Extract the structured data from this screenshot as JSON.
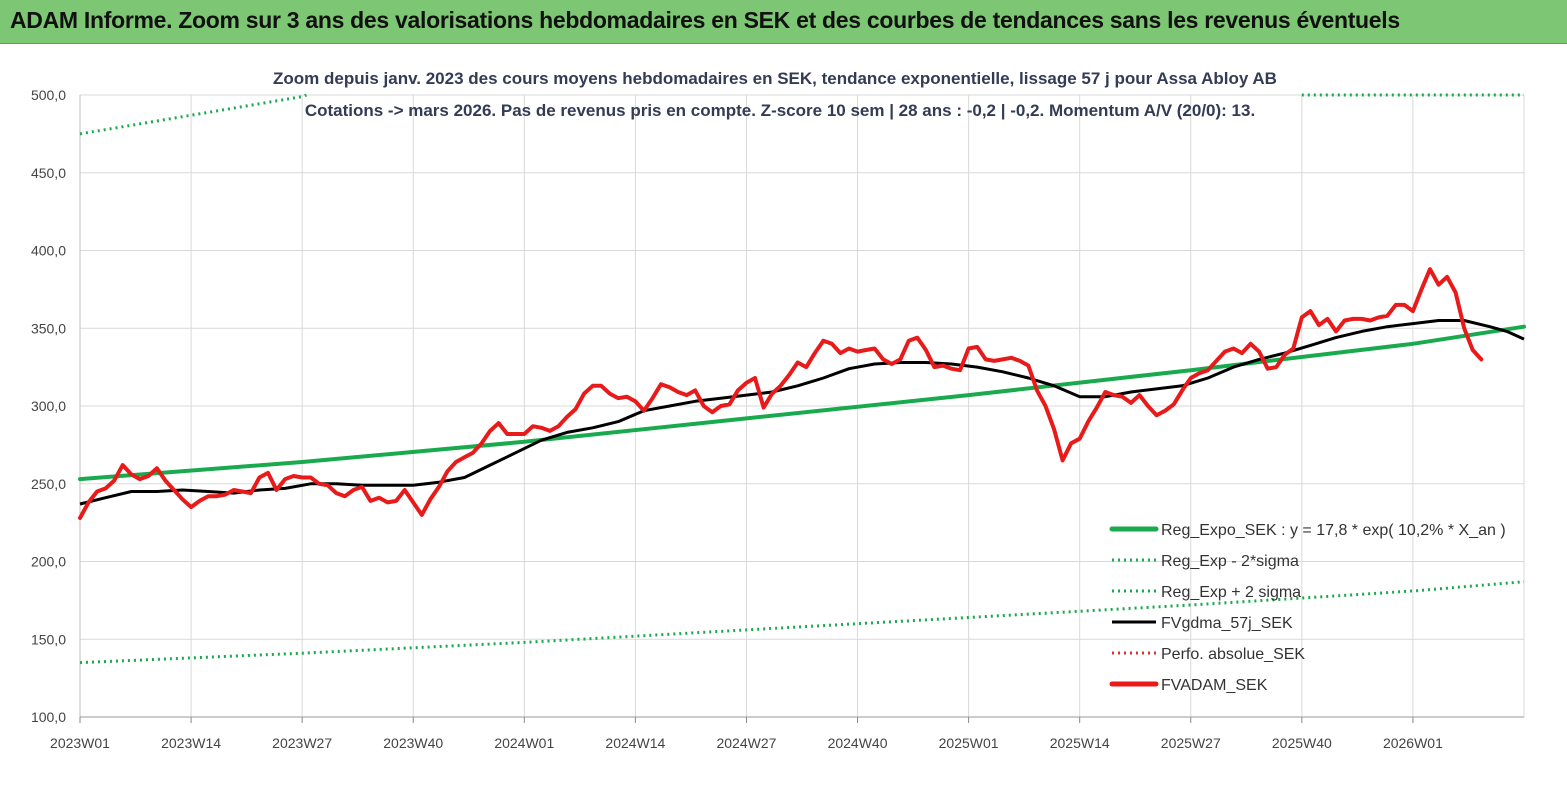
{
  "header": {
    "title": "ADAM Informe. Zoom sur 3 ans des valorisations hebdomadaires en SEK et des courbes de tendances sans les revenus éventuels"
  },
  "colors": {
    "banner": "#7dc673",
    "reg_expo": "#1aaa4e",
    "bands": "#1aaa4e",
    "fvgdma": "#000000",
    "perfo": "#e03030",
    "fvadam": "#e81a1a"
  },
  "chart_data": {
    "type": "line",
    "title": "Zoom depuis janv. 2023 des cours moyens hebdomadaires en SEK, tendance exponentielle, lissage 57 j pour Assa Abloy AB",
    "subtitle": "Cotations -> mars 2026. Pas de revenus pris en compte. Z-score 10 sem | 28 ans : -0,2 | -0,2. Momentum A/V (20/0): 13.",
    "ylim": [
      100,
      500
    ],
    "grid": true,
    "y_ticks": [
      "100,0",
      "150,0",
      "200,0",
      "250,0",
      "300,0",
      "350,0",
      "400,0",
      "450,0",
      "500,0"
    ],
    "x_ticks": [
      "2023W01",
      "2023W14",
      "2023W27",
      "2023W40",
      "2024W01",
      "2024W14",
      "2024W27",
      "2024W40",
      "2025W01",
      "2025W14",
      "2025W27",
      "2025W40",
      "2026W01"
    ],
    "x_range_weeks": [
      0,
      169
    ],
    "legend_position": "bottom-right",
    "series": [
      {
        "name": "Reg_Expo_SEK : y = 17,8 * exp( 10,2% *  X_an )",
        "style": "solid-thick",
        "color": "#1aaa4e",
        "points": [
          [
            0,
            253
          ],
          [
            26,
            264
          ],
          [
            52,
            277
          ],
          [
            78,
            292
          ],
          [
            104,
            307
          ],
          [
            130,
            323
          ],
          [
            156,
            340
          ],
          [
            169,
            351
          ]
        ]
      },
      {
        "name": "Reg_Exp - 2*sigma",
        "style": "dotted",
        "color": "#1aaa4e",
        "points": [
          [
            0,
            135
          ],
          [
            26,
            141
          ],
          [
            52,
            148
          ],
          [
            78,
            156
          ],
          [
            104,
            164
          ],
          [
            130,
            172
          ],
          [
            156,
            181
          ],
          [
            169,
            187
          ]
        ]
      },
      {
        "name": "Reg_Exp + 2 sigma",
        "style": "dotted",
        "color": "#1aaa4e",
        "points": [
          [
            0,
            475
          ],
          [
            26,
            499
          ],
          [
            26.5,
            500
          ]
        ],
        "points_right": [
          [
            143,
            500
          ],
          [
            169,
            500
          ]
        ]
      },
      {
        "name": "FVgdma_57j_SEK",
        "style": "solid",
        "color": "#000000",
        "points": [
          [
            0,
            237
          ],
          [
            3,
            241
          ],
          [
            6,
            245
          ],
          [
            9,
            245
          ],
          [
            12,
            246
          ],
          [
            15,
            245
          ],
          [
            18,
            244
          ],
          [
            21,
            246
          ],
          [
            24,
            247
          ],
          [
            27,
            250
          ],
          [
            30,
            250
          ],
          [
            33,
            249
          ],
          [
            36,
            249
          ],
          [
            39,
            249
          ],
          [
            42,
            251
          ],
          [
            45,
            254
          ],
          [
            48,
            262
          ],
          [
            51,
            270
          ],
          [
            54,
            278
          ],
          [
            57,
            283
          ],
          [
            60,
            286
          ],
          [
            63,
            290
          ],
          [
            66,
            297
          ],
          [
            69,
            300
          ],
          [
            72,
            303
          ],
          [
            75,
            305
          ],
          [
            78,
            307
          ],
          [
            81,
            309
          ],
          [
            84,
            313
          ],
          [
            87,
            318
          ],
          [
            90,
            324
          ],
          [
            93,
            327
          ],
          [
            96,
            328
          ],
          [
            99,
            328
          ],
          [
            102,
            327
          ],
          [
            105,
            325
          ],
          [
            108,
            322
          ],
          [
            111,
            318
          ],
          [
            114,
            313
          ],
          [
            117,
            306
          ],
          [
            120,
            306
          ],
          [
            123,
            309
          ],
          [
            126,
            311
          ],
          [
            129,
            313
          ],
          [
            132,
            318
          ],
          [
            135,
            325
          ],
          [
            138,
            330
          ],
          [
            141,
            334
          ],
          [
            144,
            339
          ],
          [
            147,
            344
          ],
          [
            150,
            348
          ],
          [
            153,
            351
          ],
          [
            156,
            353
          ],
          [
            159,
            355
          ],
          [
            162,
            355
          ],
          [
            165,
            351
          ],
          [
            167,
            348
          ],
          [
            169,
            343
          ]
        ]
      },
      {
        "name": "Perfo. absolue_SEK",
        "style": "dotted",
        "color": "#e03030",
        "points": []
      },
      {
        "name": "FVADAM_SEK",
        "style": "solid-thick",
        "color": "#e81a1a",
        "points": [
          [
            0,
            228
          ],
          [
            1,
            238
          ],
          [
            2,
            245
          ],
          [
            3,
            247
          ],
          [
            4,
            252
          ],
          [
            5,
            262
          ],
          [
            6,
            256
          ],
          [
            7,
            253
          ],
          [
            8,
            255
          ],
          [
            9,
            260
          ],
          [
            10,
            252
          ],
          [
            11,
            246
          ],
          [
            12,
            240
          ],
          [
            13,
            235
          ],
          [
            14,
            239
          ],
          [
            15,
            242
          ],
          [
            16,
            242
          ],
          [
            17,
            243
          ],
          [
            18,
            246
          ],
          [
            19,
            245
          ],
          [
            20,
            244
          ],
          [
            21,
            254
          ],
          [
            22,
            257
          ],
          [
            23,
            246
          ],
          [
            24,
            253
          ],
          [
            25,
            255
          ],
          [
            26,
            254
          ],
          [
            27,
            254
          ],
          [
            28,
            250
          ],
          [
            29,
            249
          ],
          [
            30,
            244
          ],
          [
            31,
            242
          ],
          [
            32,
            246
          ],
          [
            33,
            248
          ],
          [
            34,
            239
          ],
          [
            35,
            241
          ],
          [
            36,
            238
          ],
          [
            37,
            239
          ],
          [
            38,
            246
          ],
          [
            39,
            238
          ],
          [
            40,
            230
          ],
          [
            41,
            240
          ],
          [
            42,
            248
          ],
          [
            43,
            258
          ],
          [
            44,
            264
          ],
          [
            45,
            267
          ],
          [
            46,
            270
          ],
          [
            47,
            276
          ],
          [
            48,
            284
          ],
          [
            49,
            289
          ],
          [
            50,
            282
          ],
          [
            51,
            282
          ],
          [
            52,
            282
          ],
          [
            53,
            287
          ],
          [
            54,
            286
          ],
          [
            55,
            284
          ],
          [
            56,
            287
          ],
          [
            57,
            293
          ],
          [
            58,
            298
          ],
          [
            59,
            308
          ],
          [
            60,
            313
          ],
          [
            61,
            313
          ],
          [
            62,
            308
          ],
          [
            63,
            305
          ],
          [
            64,
            306
          ],
          [
            65,
            303
          ],
          [
            66,
            297
          ],
          [
            67,
            305
          ],
          [
            68,
            314
          ],
          [
            69,
            312
          ],
          [
            70,
            309
          ],
          [
            71,
            307
          ],
          [
            72,
            310
          ],
          [
            73,
            300
          ],
          [
            74,
            296
          ],
          [
            75,
            300
          ],
          [
            76,
            301
          ],
          [
            77,
            310
          ],
          [
            78,
            315
          ],
          [
            79,
            318
          ],
          [
            80,
            299
          ],
          [
            81,
            308
          ],
          [
            82,
            313
          ],
          [
            83,
            320
          ],
          [
            84,
            328
          ],
          [
            85,
            325
          ],
          [
            86,
            334
          ],
          [
            87,
            342
          ],
          [
            88,
            340
          ],
          [
            89,
            334
          ],
          [
            90,
            337
          ],
          [
            91,
            335
          ],
          [
            92,
            336
          ],
          [
            93,
            337
          ],
          [
            94,
            330
          ],
          [
            95,
            327
          ],
          [
            96,
            330
          ],
          [
            97,
            342
          ],
          [
            98,
            344
          ],
          [
            99,
            336
          ],
          [
            100,
            325
          ],
          [
            101,
            326
          ],
          [
            102,
            324
          ],
          [
            103,
            323
          ],
          [
            104,
            337
          ],
          [
            105,
            338
          ],
          [
            106,
            330
          ],
          [
            107,
            329
          ],
          [
            108,
            330
          ],
          [
            109,
            331
          ],
          [
            110,
            329
          ],
          [
            111,
            326
          ],
          [
            112,
            310
          ],
          [
            113,
            300
          ],
          [
            114,
            285
          ],
          [
            115,
            265
          ],
          [
            116,
            276
          ],
          [
            117,
            279
          ],
          [
            118,
            290
          ],
          [
            119,
            299
          ],
          [
            120,
            309
          ],
          [
            121,
            307
          ],
          [
            122,
            306
          ],
          [
            123,
            302
          ],
          [
            124,
            307
          ],
          [
            125,
            300
          ],
          [
            126,
            294
          ],
          [
            127,
            297
          ],
          [
            128,
            301
          ],
          [
            129,
            310
          ],
          [
            130,
            318
          ],
          [
            131,
            321
          ],
          [
            132,
            323
          ],
          [
            133,
            329
          ],
          [
            134,
            335
          ],
          [
            135,
            337
          ],
          [
            136,
            334
          ],
          [
            137,
            340
          ],
          [
            138,
            335
          ],
          [
            139,
            324
          ],
          [
            140,
            325
          ],
          [
            141,
            333
          ],
          [
            142,
            337
          ],
          [
            143,
            357
          ],
          [
            144,
            361
          ],
          [
            145,
            352
          ],
          [
            146,
            356
          ],
          [
            147,
            348
          ],
          [
            148,
            355
          ],
          [
            149,
            356
          ],
          [
            150,
            356
          ],
          [
            151,
            355
          ],
          [
            152,
            357
          ],
          [
            153,
            358
          ],
          [
            154,
            365
          ],
          [
            155,
            365
          ],
          [
            156,
            361
          ],
          [
            157,
            375
          ],
          [
            158,
            388
          ],
          [
            159,
            378
          ],
          [
            160,
            383
          ],
          [
            161,
            373
          ],
          [
            162,
            350
          ],
          [
            163,
            336
          ],
          [
            164,
            330
          ]
        ]
      }
    ]
  }
}
